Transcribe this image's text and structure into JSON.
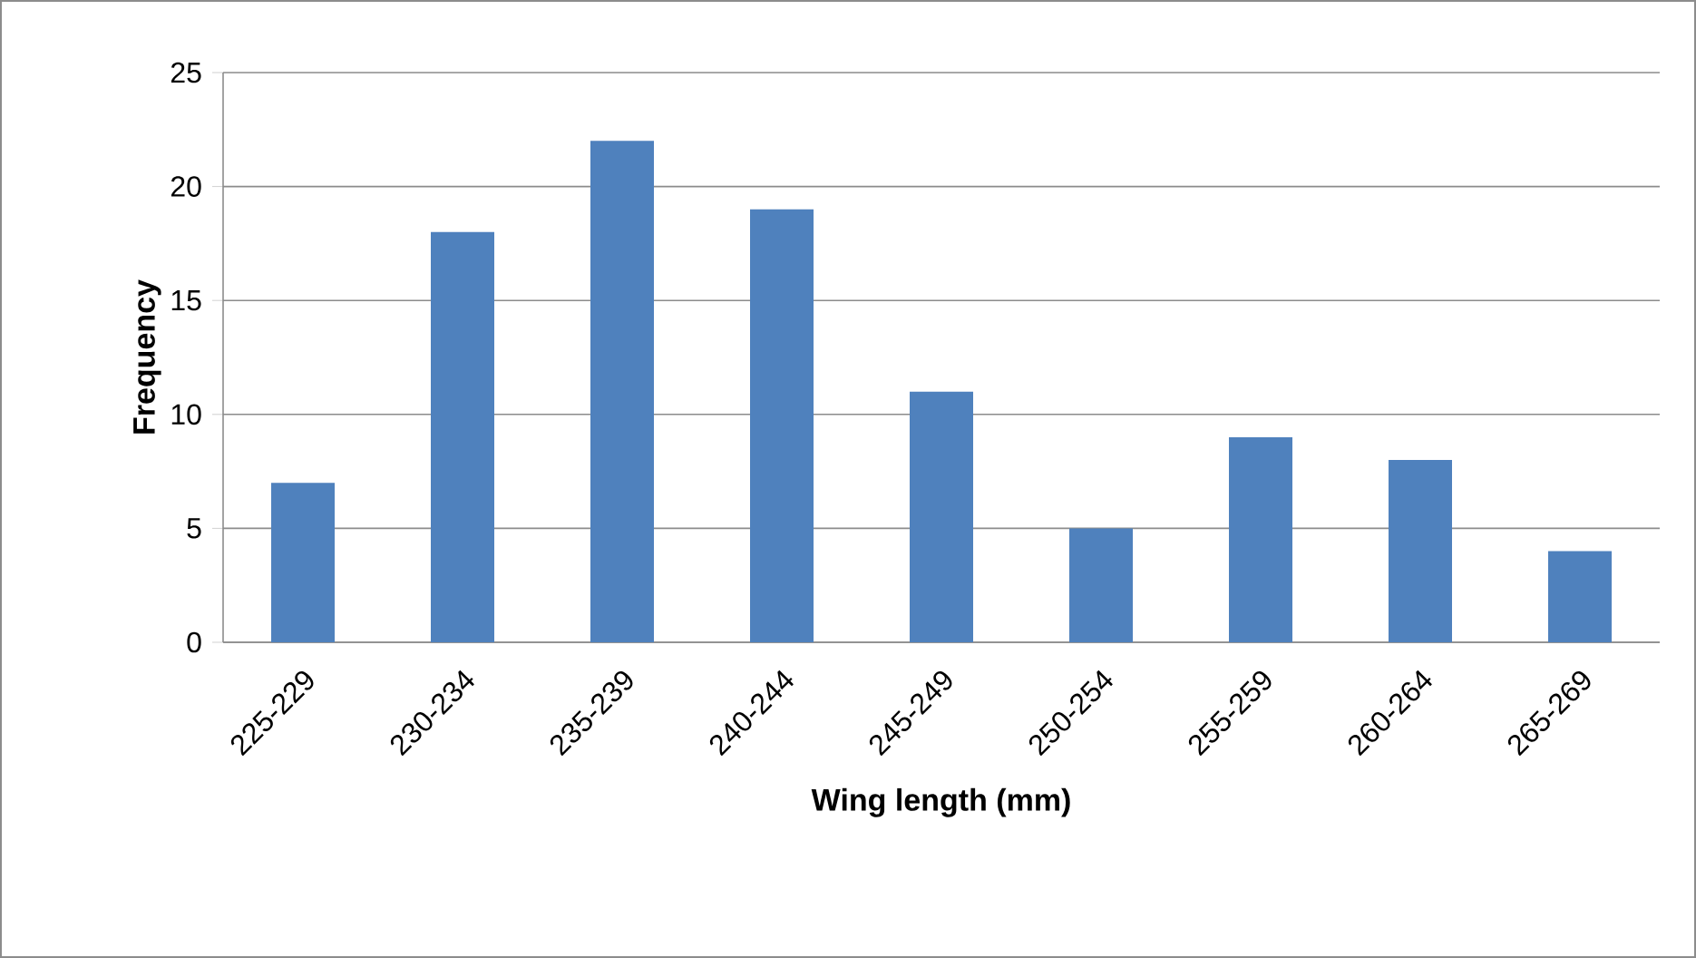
{
  "chart_data": {
    "type": "bar",
    "xlabel": "Wing length (mm)",
    "ylabel": "Frequency",
    "categories": [
      "225-229",
      "230-234",
      "235-239",
      "240-244",
      "245-249",
      "250-254",
      "255-259",
      "260-264",
      "265-269"
    ],
    "values": [
      7,
      18,
      22,
      19,
      11,
      5,
      9,
      8,
      4
    ],
    "color": "#4f81bd",
    "ylim": [
      0,
      25
    ],
    "yticks": [
      0,
      5,
      10,
      15,
      20,
      25
    ],
    "grid": "y"
  }
}
